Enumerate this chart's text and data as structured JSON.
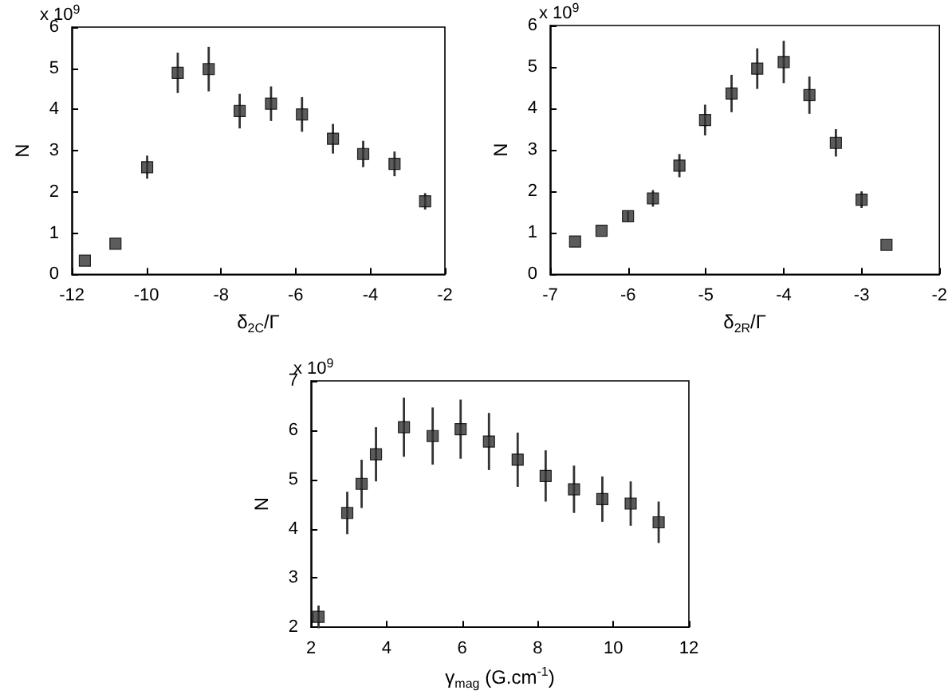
{
  "chart_data": [
    {
      "type": "scatter",
      "xlabel": "δ$_{2C}$/Γ",
      "ylabel": "N",
      "annotations": [
        "x 10$^{9}$"
      ],
      "marker": "square",
      "grid": false,
      "xlim": [
        -12,
        -2
      ],
      "xticks": [
        -12,
        -10,
        -8,
        -6,
        -4,
        -2
      ],
      "ylim": [
        0,
        6
      ],
      "yticks": [
        0,
        1,
        2,
        3,
        4,
        5,
        6
      ],
      "x": [
        -11.65,
        -10.83,
        -9.98,
        -9.16,
        -8.33,
        -7.5,
        -6.66,
        -5.83,
        -5.0,
        -4.19,
        -3.35,
        -2.53
      ],
      "series": [
        {
          "color": "#333333",
          "values": [
            0.33,
            0.74,
            2.6,
            4.89,
            4.98,
            3.96,
            4.14,
            3.88,
            3.29,
            2.92,
            2.68,
            1.77
          ],
          "errors": [
            null,
            null,
            0.28,
            0.49,
            0.54,
            0.42,
            0.42,
            0.42,
            0.36,
            0.32,
            0.3,
            0.2
          ]
        }
      ]
    },
    {
      "type": "scatter",
      "xlabel": "δ$_{2R}$/Γ",
      "ylabel": "N",
      "annotations": [
        "x 10$^{9}$"
      ],
      "marker": "square",
      "grid": false,
      "xlim": [
        -7,
        -2
      ],
      "xticks": [
        -7,
        -6,
        -5,
        -4,
        -3,
        -2
      ],
      "ylim": [
        0,
        6
      ],
      "yticks": [
        0,
        1,
        2,
        3,
        4,
        5,
        6
      ],
      "x": [
        -6.68,
        -6.34,
        -6.0,
        -5.68,
        -5.34,
        -5.01,
        -4.67,
        -4.34,
        -4.0,
        -3.67,
        -3.33,
        -3.0,
        -2.68
      ],
      "series": [
        {
          "color": "#333333",
          "values": [
            0.79,
            1.05,
            1.4,
            1.83,
            2.62,
            3.72,
            4.36,
            4.96,
            5.12,
            4.32,
            3.17,
            1.8,
            0.71
          ],
          "errors": [
            null,
            null,
            0.12,
            0.2,
            0.28,
            0.37,
            0.45,
            0.49,
            0.51,
            0.45,
            0.33,
            0.2,
            null
          ]
        }
      ]
    },
    {
      "type": "scatter",
      "xlabel": "γ$_{mag}$ (G.cm$^{-1}$)",
      "ylabel": "N",
      "annotations": [
        "x 10$^{9}$"
      ],
      "marker": "square",
      "grid": false,
      "xlim": [
        2,
        12
      ],
      "xticks": [
        2,
        4,
        6,
        8,
        10,
        12
      ],
      "ylim": [
        2,
        7
      ],
      "yticks": [
        2,
        3,
        4,
        5,
        6,
        7
      ],
      "x": [
        2.2,
        2.96,
        3.34,
        3.72,
        4.46,
        5.22,
        5.96,
        6.71,
        7.47,
        8.21,
        8.96,
        9.71,
        10.46,
        11.2
      ],
      "series": [
        {
          "color": "#333333",
          "values": [
            2.21,
            4.32,
            4.91,
            5.51,
            6.06,
            5.88,
            6.02,
            5.77,
            5.4,
            5.07,
            4.8,
            4.6,
            4.51,
            4.13
          ],
          "errors": [
            0.23,
            0.43,
            0.49,
            0.55,
            0.6,
            0.58,
            0.6,
            0.58,
            0.55,
            0.52,
            0.48,
            0.46,
            0.45,
            0.42
          ]
        }
      ]
    }
  ]
}
